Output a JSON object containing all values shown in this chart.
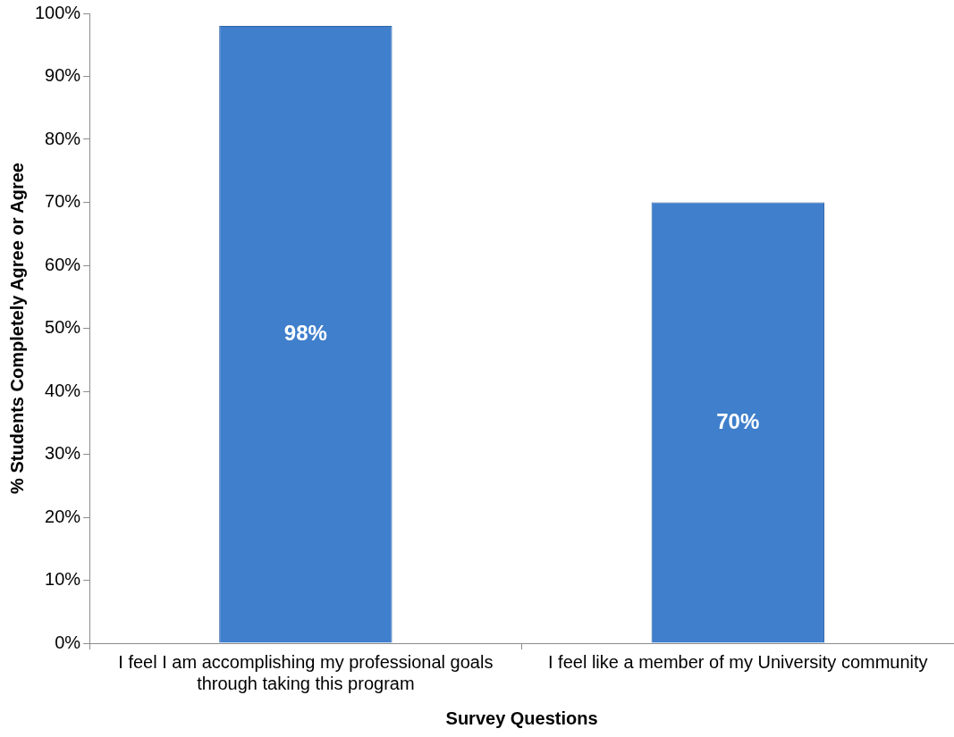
{
  "chart_data": {
    "type": "bar",
    "xlabel": "Survey Questions",
    "ylabel": "% Students Completely Agree or Agree",
    "categories": [
      "I feel I am accomplishing my professional goals through taking this program",
      "I feel like a member of my University community"
    ],
    "values": [
      98,
      70
    ],
    "value_labels": [
      "98%",
      "70%"
    ],
    "color": "#3f7fcc",
    "ylim": [
      0,
      100
    ],
    "yticks": [
      {
        "value": 0,
        "label": "0%"
      },
      {
        "value": 10,
        "label": "10%"
      },
      {
        "value": 20,
        "label": "20%"
      },
      {
        "value": 30,
        "label": "30%"
      },
      {
        "value": 40,
        "label": "40%"
      },
      {
        "value": 50,
        "label": "50%"
      },
      {
        "value": 60,
        "label": "60%"
      },
      {
        "value": 70,
        "label": "70%"
      },
      {
        "value": 80,
        "label": "80%"
      },
      {
        "value": 90,
        "label": "90%"
      },
      {
        "value": 100,
        "label": "100%"
      }
    ],
    "grid": false,
    "legend": false
  }
}
